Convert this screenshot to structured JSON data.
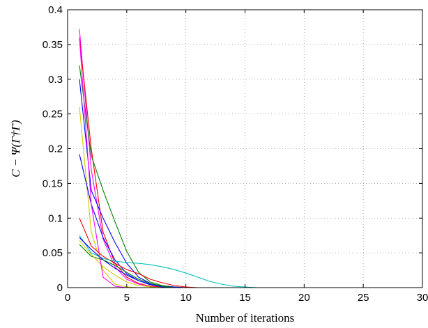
{
  "chart_data": {
    "type": "line",
    "xlabel": "Number of iterations",
    "ylabel": "C − Ψ(Γ†Γ)",
    "xlim": [
      0,
      30
    ],
    "ylim": [
      0,
      0.4
    ],
    "xticks": [
      0,
      5,
      10,
      15,
      20,
      25,
      30
    ],
    "yticks": [
      0,
      0.05,
      0.1,
      0.15,
      0.2,
      0.25,
      0.3,
      0.35,
      0.4
    ],
    "xtick_labels": [
      "0",
      "5",
      "10",
      "15",
      "20",
      "25",
      "30"
    ],
    "ytick_labels": [
      "0",
      "0.05",
      "0.1",
      "0.15",
      "0.2",
      "0.25",
      "0.3",
      "0.35",
      "0.4"
    ],
    "grid": true,
    "series": [
      {
        "color": "#ff00ff",
        "x": [
          1,
          2,
          3,
          4,
          5,
          6,
          7,
          8,
          9,
          10,
          30
        ],
        "y": [
          0.372,
          0.17,
          0.07,
          0.03,
          0.012,
          0.005,
          0.002,
          0.001,
          0.0,
          0.0,
          0.0
        ]
      },
      {
        "color": "#ff0000",
        "x": [
          1,
          2,
          3,
          4,
          5,
          6,
          7,
          8,
          9,
          10,
          30
        ],
        "y": [
          0.36,
          0.2,
          0.08,
          0.035,
          0.015,
          0.006,
          0.002,
          0.001,
          0.0,
          0.0,
          0.0
        ]
      },
      {
        "color": "#008000",
        "x": [
          1,
          2,
          3,
          4,
          5,
          6,
          7,
          8,
          9,
          10,
          30
        ],
        "y": [
          0.32,
          0.19,
          0.14,
          0.095,
          0.052,
          0.022,
          0.008,
          0.003,
          0.001,
          0.0,
          0.0
        ]
      },
      {
        "color": "#0000ff",
        "x": [
          1,
          2,
          3,
          4,
          5,
          6,
          7,
          8,
          9,
          10,
          30
        ],
        "y": [
          0.3,
          0.14,
          0.1,
          0.065,
          0.035,
          0.015,
          0.006,
          0.002,
          0.001,
          0.0,
          0.0
        ]
      },
      {
        "color": "#cccc00",
        "x": [
          1,
          2,
          3,
          4,
          5,
          6,
          30
        ],
        "y": [
          0.26,
          0.08,
          0.025,
          0.005,
          0.001,
          0.0,
          0.0
        ]
      },
      {
        "color": "#0000ff",
        "x": [
          1,
          2,
          3,
          4,
          5,
          6,
          7,
          8,
          9,
          10,
          30
        ],
        "y": [
          0.192,
          0.12,
          0.072,
          0.04,
          0.02,
          0.01,
          0.004,
          0.001,
          0.0,
          0.0,
          0.0
        ]
      },
      {
        "color": "#ff0000",
        "x": [
          1,
          2,
          3,
          4,
          5,
          6,
          7,
          8,
          9,
          10,
          11,
          12,
          30
        ],
        "y": [
          0.1,
          0.06,
          0.045,
          0.035,
          0.026,
          0.02,
          0.012,
          0.007,
          0.003,
          0.001,
          0.0,
          0.0,
          0.0
        ]
      },
      {
        "color": "#00bfbf",
        "x": [
          1,
          2,
          3,
          4,
          5,
          6,
          7,
          8,
          9,
          10,
          11,
          12,
          13,
          14,
          15,
          16,
          30
        ],
        "y": [
          0.075,
          0.05,
          0.042,
          0.038,
          0.036,
          0.035,
          0.033,
          0.03,
          0.026,
          0.021,
          0.015,
          0.009,
          0.005,
          0.002,
          0.001,
          0.0,
          0.0
        ]
      },
      {
        "color": "#0000ff",
        "x": [
          1,
          2,
          3,
          4,
          5,
          6,
          7,
          8,
          9,
          10,
          30
        ],
        "y": [
          0.072,
          0.055,
          0.04,
          0.028,
          0.018,
          0.01,
          0.005,
          0.002,
          0.0,
          0.0,
          0.0
        ]
      },
      {
        "color": "#008000",
        "x": [
          1,
          2,
          3,
          4,
          5,
          6,
          7,
          8,
          9,
          10,
          30
        ],
        "y": [
          0.062,
          0.045,
          0.04,
          0.032,
          0.022,
          0.012,
          0.006,
          0.002,
          0.0,
          0.0,
          0.0
        ]
      },
      {
        "color": "#cccc00",
        "x": [
          1,
          2,
          3,
          4,
          5,
          6,
          7,
          8,
          30
        ],
        "y": [
          0.068,
          0.048,
          0.03,
          0.018,
          0.008,
          0.003,
          0.001,
          0.0,
          0.0
        ]
      },
      {
        "color": "#ff00ff",
        "x": [
          1,
          2,
          3,
          4,
          5,
          30
        ],
        "y": [
          0.36,
          0.12,
          0.015,
          0.002,
          0.0,
          0.0
        ]
      }
    ]
  }
}
